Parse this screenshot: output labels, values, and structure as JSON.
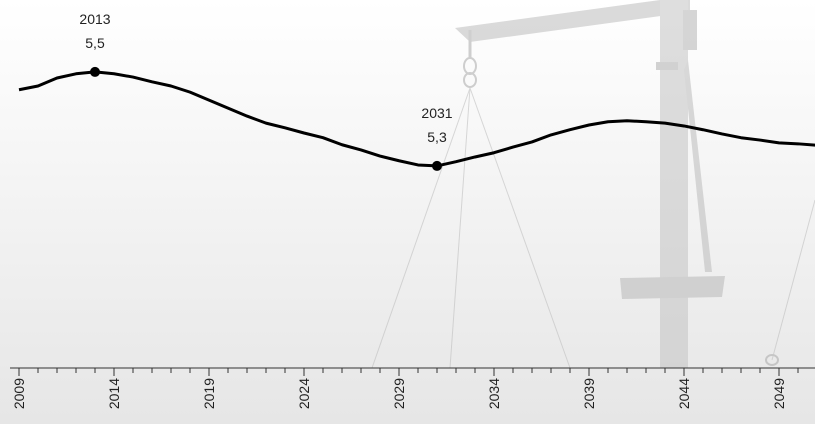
{
  "chart_data": {
    "type": "line",
    "x": [
      2009,
      2010,
      2011,
      2012,
      2013,
      2014,
      2015,
      2016,
      2017,
      2018,
      2019,
      2020,
      2021,
      2022,
      2023,
      2024,
      2025,
      2026,
      2027,
      2028,
      2029,
      2030,
      2031,
      2032,
      2033,
      2034,
      2035,
      2036,
      2037,
      2038,
      2039,
      2040,
      2041,
      2042,
      2043,
      2044,
      2045,
      2046,
      2047,
      2048,
      2049,
      2050,
      2051
    ],
    "series": [
      {
        "color": "#000000",
        "values": [
          5.462,
          5.47,
          5.487,
          5.496,
          5.5,
          5.496,
          5.489,
          5.479,
          5.47,
          5.457,
          5.44,
          5.423,
          5.406,
          5.391,
          5.381,
          5.37,
          5.36,
          5.345,
          5.334,
          5.321,
          5.311,
          5.302,
          5.3,
          5.309,
          5.319,
          5.328,
          5.34,
          5.351,
          5.366,
          5.377,
          5.387,
          5.394,
          5.396,
          5.394,
          5.391,
          5.385,
          5.377,
          5.368,
          5.36,
          5.355,
          5.349,
          5.347,
          5.344
        ]
      }
    ],
    "xlim": [
      2009,
      2051
    ],
    "xticks": [
      2009,
      2014,
      2019,
      2024,
      2029,
      2034,
      2039,
      2044,
      2049
    ],
    "ylim": [
      4.87,
      5.653
    ],
    "annotations": [
      {
        "x": 2013,
        "y": 5.5,
        "y_label": "5,5"
      },
      {
        "x": 2031,
        "y": 5.3,
        "y_label": "5,3"
      }
    ]
  }
}
